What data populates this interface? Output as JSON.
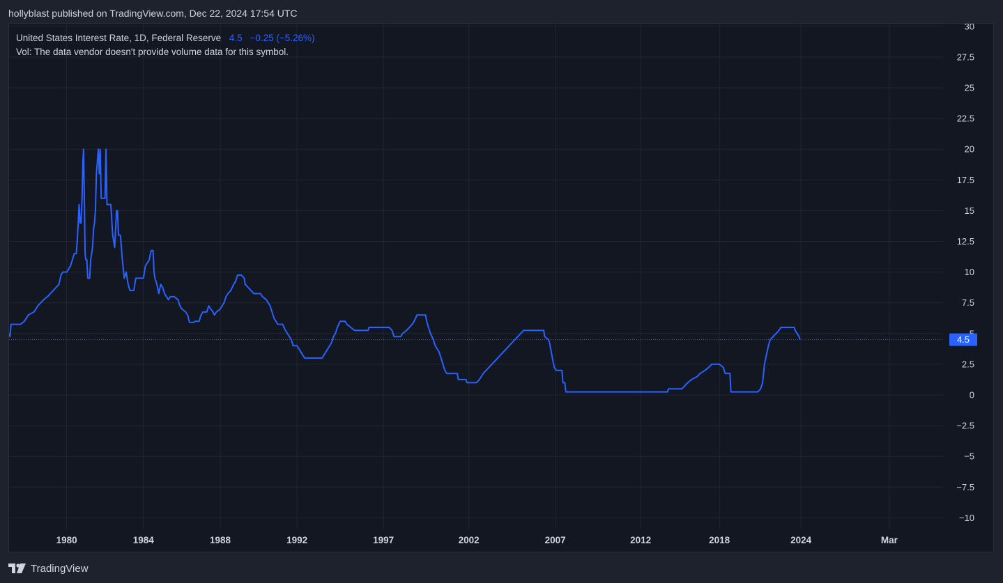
{
  "header": {
    "published_text": "hollyblast published on TradingView.com, Dec 22, 2024 17:54 UTC"
  },
  "legend": {
    "symbol": "United States Interest Rate, 1D, Federal Reserve",
    "last_value": "4.5",
    "change": "−0.25 (−5.26%)",
    "volume_note": "Vol: The data vendor doesn't provide volume data for this symbol."
  },
  "price_label": "4.5",
  "footer": {
    "brand": "TradingView"
  },
  "colors": {
    "line": "#2962ff",
    "background": "#131722",
    "grid": "#22262f",
    "text": "#d1d4dc"
  },
  "chart_data": {
    "type": "line",
    "title": "United States Interest Rate, 1D, Federal Reserve",
    "xlabel": "",
    "ylabel": "",
    "ylim": [
      -10,
      30
    ],
    "xlim": [
      1977.0,
      2025.65
    ],
    "y_ticks": [
      30,
      27.5,
      25,
      22.5,
      20,
      17.5,
      15,
      12.5,
      10,
      7.5,
      5,
      2.5,
      0,
      -2.5,
      -5,
      -7.5,
      -10
    ],
    "y_tick_labels": [
      "30",
      "27.5",
      "25",
      "22.5",
      "20",
      "17.5",
      "15",
      "12.5",
      "10",
      "7.5",
      "5",
      "2.5",
      "0",
      "−2.5",
      "−5",
      "−7.5",
      "−10"
    ],
    "x_ticks": [
      {
        "label": "1980",
        "x": 1980.0
      },
      {
        "label": "1984",
        "x": 1984.0
      },
      {
        "label": "1988",
        "x": 1988.0
      },
      {
        "label": "1992",
        "x": 1992.0
      },
      {
        "label": "1997",
        "x": 1996.5
      },
      {
        "label": "2002",
        "x": 2000.95
      },
      {
        "label": "2007",
        "x": 2005.45
      },
      {
        "label": "2012",
        "x": 2009.9
      },
      {
        "label": "2018",
        "x": 2014.0
      },
      {
        "label": "2024",
        "x": 2018.25
      },
      {
        "label": "Mar",
        "x": 2022.85
      }
    ],
    "last_value": 4.5,
    "series": [
      {
        "name": "United States Interest Rate",
        "points": [
          [
            1977.0,
            5.0
          ],
          [
            1977.05,
            4.75
          ],
          [
            1977.1,
            5.75
          ],
          [
            1977.6,
            5.75
          ],
          [
            1977.8,
            6.0
          ],
          [
            1978.0,
            6.5
          ],
          [
            1978.3,
            6.75
          ],
          [
            1978.5,
            7.25
          ],
          [
            1978.8,
            7.75
          ],
          [
            1979.0,
            8.0
          ],
          [
            1979.3,
            8.5
          ],
          [
            1979.6,
            9.0
          ],
          [
            1979.7,
            9.75
          ],
          [
            1979.8,
            10.0
          ],
          [
            1980.0,
            10.0
          ],
          [
            1980.2,
            10.5
          ],
          [
            1980.3,
            11.0
          ],
          [
            1980.4,
            11.5
          ],
          [
            1980.5,
            11.5
          ],
          [
            1980.55,
            12.5
          ],
          [
            1980.6,
            14.0
          ],
          [
            1980.65,
            15.5
          ],
          [
            1980.7,
            14.0
          ],
          [
            1980.75,
            14.0
          ],
          [
            1980.8,
            16.0
          ],
          [
            1980.85,
            19.0
          ],
          [
            1980.88,
            20.0
          ],
          [
            1980.92,
            16.0
          ],
          [
            1980.96,
            11.5
          ],
          [
            1981.0,
            11.0
          ],
          [
            1981.05,
            11.0
          ],
          [
            1981.1,
            9.5
          ],
          [
            1981.2,
            9.5
          ],
          [
            1981.25,
            11.0
          ],
          [
            1981.35,
            12.0
          ],
          [
            1981.4,
            13.5
          ],
          [
            1981.45,
            14.0
          ],
          [
            1981.5,
            15.0
          ],
          [
            1981.55,
            18.0
          ],
          [
            1981.6,
            19.0
          ],
          [
            1981.65,
            20.0
          ],
          [
            1981.7,
            18.0
          ],
          [
            1981.72,
            19.0
          ],
          [
            1981.75,
            20.0
          ],
          [
            1981.8,
            16.0
          ],
          [
            1981.9,
            16.0
          ],
          [
            1982.0,
            16.0
          ],
          [
            1982.05,
            20.0
          ],
          [
            1982.1,
            15.5
          ],
          [
            1982.3,
            15.5
          ],
          [
            1982.4,
            13.0
          ],
          [
            1982.45,
            12.5
          ],
          [
            1982.5,
            12.0
          ],
          [
            1982.6,
            15.0
          ],
          [
            1982.65,
            15.0
          ],
          [
            1982.7,
            13.0
          ],
          [
            1982.8,
            13.0
          ],
          [
            1982.9,
            11.0
          ],
          [
            1983.0,
            9.5
          ],
          [
            1983.1,
            10.0
          ],
          [
            1983.2,
            9.0
          ],
          [
            1983.3,
            8.5
          ],
          [
            1983.5,
            8.5
          ],
          [
            1983.6,
            9.5
          ],
          [
            1983.7,
            9.5
          ],
          [
            1984.0,
            9.5
          ],
          [
            1984.1,
            10.5
          ],
          [
            1984.3,
            11.0
          ],
          [
            1984.4,
            11.75
          ],
          [
            1984.5,
            11.75
          ],
          [
            1984.55,
            10.0
          ],
          [
            1984.6,
            9.5
          ],
          [
            1984.7,
            9.0
          ],
          [
            1984.8,
            8.25
          ],
          [
            1984.9,
            9.0
          ],
          [
            1985.0,
            8.75
          ],
          [
            1985.1,
            8.25
          ],
          [
            1985.3,
            7.75
          ],
          [
            1985.4,
            8.0
          ],
          [
            1985.6,
            8.0
          ],
          [
            1985.8,
            7.75
          ],
          [
            1985.9,
            7.25
          ],
          [
            1986.0,
            7.0
          ],
          [
            1986.2,
            6.75
          ],
          [
            1986.3,
            6.5
          ],
          [
            1986.4,
            5.9
          ],
          [
            1986.6,
            5.9
          ],
          [
            1986.7,
            6.0
          ],
          [
            1986.9,
            6.0
          ],
          [
            1987.0,
            6.5
          ],
          [
            1987.1,
            6.75
          ],
          [
            1987.3,
            6.75
          ],
          [
            1987.4,
            7.25
          ],
          [
            1987.5,
            7.0
          ],
          [
            1987.6,
            6.8
          ],
          [
            1987.7,
            6.5
          ],
          [
            1987.8,
            6.75
          ],
          [
            1988.0,
            7.0
          ],
          [
            1988.1,
            7.25
          ],
          [
            1988.2,
            7.5
          ],
          [
            1988.3,
            8.0
          ],
          [
            1988.4,
            8.25
          ],
          [
            1988.55,
            8.5
          ],
          [
            1988.7,
            9.0
          ],
          [
            1988.8,
            9.25
          ],
          [
            1988.9,
            9.75
          ],
          [
            1989.1,
            9.75
          ],
          [
            1989.25,
            9.5
          ],
          [
            1989.3,
            9.0
          ],
          [
            1989.45,
            8.75
          ],
          [
            1989.6,
            8.5
          ],
          [
            1989.75,
            8.25
          ],
          [
            1990.1,
            8.25
          ],
          [
            1990.2,
            8.0
          ],
          [
            1990.4,
            7.75
          ],
          [
            1990.5,
            7.5
          ],
          [
            1990.6,
            7.25
          ],
          [
            1990.7,
            6.75
          ],
          [
            1990.8,
            6.25
          ],
          [
            1991.0,
            5.75
          ],
          [
            1991.25,
            5.75
          ],
          [
            1991.4,
            5.25
          ],
          [
            1991.6,
            4.75
          ],
          [
            1991.7,
            4.5
          ],
          [
            1991.8,
            4.0
          ],
          [
            1992.0,
            4.0
          ],
          [
            1992.1,
            3.75
          ],
          [
            1992.3,
            3.25
          ],
          [
            1992.4,
            3.0
          ],
          [
            1993.3,
            3.0
          ],
          [
            1993.5,
            3.5
          ],
          [
            1993.7,
            4.0
          ],
          [
            1993.8,
            4.25
          ],
          [
            1993.9,
            4.75
          ],
          [
            1994.0,
            5.0
          ],
          [
            1994.1,
            5.5
          ],
          [
            1994.25,
            6.0
          ],
          [
            1994.5,
            6.0
          ],
          [
            1994.6,
            5.75
          ],
          [
            1994.8,
            5.5
          ],
          [
            1995.0,
            5.25
          ],
          [
            1995.7,
            5.25
          ],
          [
            1995.75,
            5.5
          ],
          [
            1996.8,
            5.5
          ],
          [
            1996.95,
            5.25
          ],
          [
            1997.05,
            4.75
          ],
          [
            1997.4,
            4.75
          ],
          [
            1997.5,
            5.0
          ],
          [
            1997.7,
            5.25
          ],
          [
            1997.85,
            5.5
          ],
          [
            1998.0,
            5.75
          ],
          [
            1998.1,
            6.0
          ],
          [
            1998.25,
            6.5
          ],
          [
            1998.7,
            6.5
          ],
          [
            1998.75,
            6.0
          ],
          [
            1998.85,
            5.5
          ],
          [
            1998.95,
            5.0
          ],
          [
            1999.1,
            4.5
          ],
          [
            1999.2,
            4.0
          ],
          [
            1999.3,
            3.75
          ],
          [
            1999.4,
            3.5
          ],
          [
            1999.5,
            3.0
          ],
          [
            1999.6,
            2.5
          ],
          [
            1999.7,
            2.0
          ],
          [
            1999.8,
            1.75
          ],
          [
            2000.35,
            1.75
          ],
          [
            2000.4,
            1.25
          ],
          [
            2000.8,
            1.25
          ],
          [
            2000.85,
            1.0
          ],
          [
            2001.35,
            1.0
          ],
          [
            2001.5,
            1.25
          ],
          [
            2001.6,
            1.5
          ],
          [
            2001.7,
            1.75
          ],
          [
            2001.85,
            2.0
          ],
          [
            2002.0,
            2.25
          ],
          [
            2002.15,
            2.5
          ],
          [
            2002.3,
            2.75
          ],
          [
            2002.45,
            3.0
          ],
          [
            2002.6,
            3.25
          ],
          [
            2002.75,
            3.5
          ],
          [
            2002.9,
            3.75
          ],
          [
            2003.05,
            4.0
          ],
          [
            2003.2,
            4.25
          ],
          [
            2003.35,
            4.5
          ],
          [
            2003.5,
            4.75
          ],
          [
            2003.65,
            5.0
          ],
          [
            2003.8,
            5.25
          ],
          [
            2004.85,
            5.25
          ],
          [
            2004.9,
            4.75
          ],
          [
            2005.1,
            4.5
          ],
          [
            2005.15,
            4.25
          ],
          [
            2005.3,
            3.0
          ],
          [
            2005.4,
            2.25
          ],
          [
            2005.5,
            2.0
          ],
          [
            2005.8,
            2.0
          ],
          [
            2005.85,
            1.0
          ],
          [
            2005.95,
            1.0
          ],
          [
            2006.0,
            0.25
          ],
          [
            2011.3,
            0.25
          ],
          [
            2011.35,
            0.5
          ],
          [
            2012.05,
            0.5
          ],
          [
            2012.2,
            0.75
          ],
          [
            2012.35,
            1.0
          ],
          [
            2012.55,
            1.25
          ],
          [
            2012.85,
            1.5
          ],
          [
            2013.0,
            1.75
          ],
          [
            2013.25,
            2.0
          ],
          [
            2013.45,
            2.25
          ],
          [
            2013.6,
            2.5
          ],
          [
            2014.0,
            2.5
          ],
          [
            2014.2,
            2.25
          ],
          [
            2014.3,
            1.75
          ],
          [
            2014.55,
            1.75
          ],
          [
            2014.6,
            0.25
          ],
          [
            2016.0,
            0.25
          ],
          [
            2016.15,
            0.5
          ],
          [
            2016.25,
            1.0
          ],
          [
            2016.3,
            1.75
          ],
          [
            2016.35,
            2.5
          ],
          [
            2016.45,
            3.25
          ],
          [
            2016.55,
            4.0
          ],
          [
            2016.65,
            4.5
          ],
          [
            2016.8,
            4.75
          ],
          [
            2016.95,
            5.0
          ],
          [
            2017.1,
            5.25
          ],
          [
            2017.2,
            5.5
          ],
          [
            2017.9,
            5.5
          ],
          [
            2017.95,
            5.25
          ],
          [
            2018.05,
            5.0
          ],
          [
            2018.15,
            4.75
          ],
          [
            2018.2,
            4.5
          ]
        ]
      }
    ]
  }
}
